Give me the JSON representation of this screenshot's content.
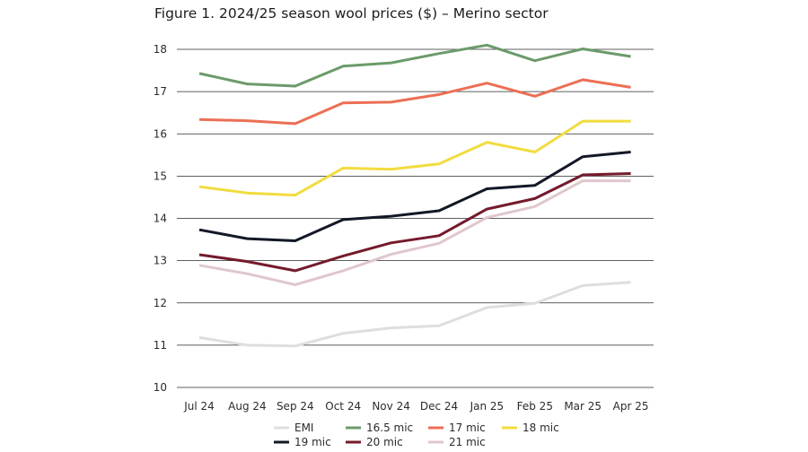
{
  "figure_title": "Figure 1. 2024/25 season wool prices ($) – Merino sector",
  "chart_data": {
    "type": "line",
    "title": "Figure 1. 2024/25 season wool prices ($) – Merino sector",
    "xlabel": "",
    "ylabel": "",
    "categories": [
      "Jul 24",
      "Aug 24",
      "Sep 24",
      "Oct 24",
      "Nov 24",
      "Dec 24",
      "Jan 25",
      "Feb 25",
      "Mar 25",
      "Apr 25"
    ],
    "ylim": [
      10,
      18
    ],
    "yticks": [
      10,
      11,
      12,
      13,
      14,
      15,
      16,
      17,
      18
    ],
    "grid": "horizontal",
    "legend_position": "bottom",
    "series": [
      {
        "name": "EMI",
        "color": "#dcdfdc",
        "values": [
          11.18,
          11.0,
          10.98,
          11.28,
          11.41,
          11.46,
          11.89,
          11.99,
          12.41,
          12.49
        ]
      },
      {
        "name": "16.5 mic",
        "color": "#6b9b6b",
        "values": [
          17.43,
          17.18,
          17.13,
          17.6,
          17.68,
          17.9,
          18.1,
          17.73,
          18.01,
          17.83
        ]
      },
      {
        "name": "17 mic",
        "color": "#ec6f55",
        "values": [
          16.34,
          16.31,
          16.24,
          16.73,
          16.75,
          16.93,
          17.2,
          16.89,
          17.28,
          17.1
        ]
      },
      {
        "name": "18 mic",
        "color": "#f1dc3f",
        "values": [
          14.75,
          14.6,
          14.55,
          15.19,
          15.16,
          15.29,
          15.8,
          15.57,
          16.3,
          16.3
        ]
      },
      {
        "name": "19 mic",
        "color": "#121826",
        "values": [
          13.73,
          13.52,
          13.47,
          13.97,
          14.05,
          14.18,
          14.7,
          14.78,
          15.46,
          15.57
        ]
      },
      {
        "name": "20 mic",
        "color": "#741a2c",
        "values": [
          13.14,
          12.98,
          12.76,
          13.11,
          13.42,
          13.59,
          14.22,
          14.47,
          15.03,
          15.06
        ]
      },
      {
        "name": "21 mic",
        "color": "#dfc7cc",
        "values": [
          12.89,
          12.69,
          12.43,
          12.76,
          13.15,
          13.41,
          14.02,
          14.28,
          14.89,
          14.89
        ]
      }
    ]
  }
}
